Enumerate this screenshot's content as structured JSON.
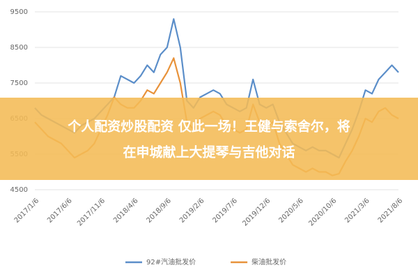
{
  "chart_data": {
    "type": "line",
    "categories": [
      "2017/1/6",
      null,
      null,
      null,
      null,
      "2017/6/6",
      null,
      null,
      null,
      null,
      "2017/11/6",
      null,
      null,
      null,
      null,
      "2018/4/6",
      null,
      null,
      null,
      null,
      "2018/9/6",
      null,
      null,
      null,
      null,
      "2019/2/6",
      null,
      null,
      null,
      null,
      "2019/7/6",
      null,
      null,
      null,
      null,
      "2019/12/6",
      null,
      null,
      null,
      null,
      "2020/5/6",
      null,
      null,
      null,
      null,
      "2020/10/6",
      null,
      null,
      null,
      null,
      "2021/3/6",
      null,
      null,
      null,
      null,
      "2021/8/6"
    ],
    "series": [
      {
        "name": "92#汽油批发价",
        "color": "#5b8ec9",
        "values": [
          6800,
          6600,
          6500,
          6400,
          6300,
          6200,
          6100,
          6300,
          6400,
          6500,
          6700,
          6900,
          7100,
          7700,
          7600,
          7500,
          7700,
          8000,
          7800,
          8300,
          8500,
          9300,
          8500,
          7000,
          6800,
          7100,
          7200,
          7300,
          7200,
          6900,
          6800,
          6700,
          6800,
          7600,
          6900,
          6800,
          6900,
          6400,
          6100,
          5800,
          5700,
          5600,
          5700,
          5600,
          5600,
          5500,
          5400,
          5800,
          6200,
          6700,
          7300,
          7200,
          7600,
          7800,
          8000,
          7800
        ]
      },
      {
        "name": "柴油批发价",
        "color": "#e8923a",
        "values": [
          6400,
          6200,
          6000,
          5900,
          5800,
          5600,
          5400,
          5500,
          5600,
          5800,
          6200,
          6600,
          7100,
          6900,
          6800,
          6800,
          7000,
          7300,
          7200,
          7500,
          7800,
          8200,
          7500,
          6400,
          6200,
          6500,
          6600,
          6700,
          6600,
          6300,
          6200,
          6100,
          6200,
          6900,
          6400,
          6300,
          6400,
          5800,
          5500,
          5200,
          5100,
          5000,
          5100,
          5000,
          5000,
          4900,
          4950,
          5300,
          5600,
          6000,
          6500,
          6400,
          6700,
          6800,
          6600,
          6500
        ]
      }
    ],
    "ylim": [
      4500,
      9500
    ],
    "yticks": [
      4500,
      5500,
      6500,
      7500,
      8500,
      9500
    ],
    "grid": true,
    "legend": "bottom"
  },
  "overlay": {
    "lines": [
      "个人配资炒股配资 仅此一场！王健与索舍尔，将",
      "在申城献上大提琴与吉他对话"
    ]
  }
}
